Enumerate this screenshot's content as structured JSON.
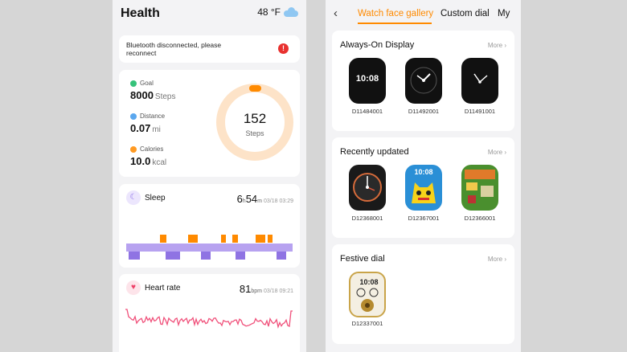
{
  "health": {
    "title": "Health",
    "weather": "48 °F",
    "bluetooth_message": "Bluetooth disconnected, please reconnect",
    "alert_icon": "!",
    "goal": {
      "label": "Goal",
      "value": "8000",
      "unit": "Steps"
    },
    "distance": {
      "label": "Distance",
      "value": "0.07",
      "unit": "mi"
    },
    "calories": {
      "label": "Calories",
      "value": "10.0",
      "unit": "kcal"
    },
    "ring": {
      "value": "152",
      "unit": "Steps",
      "progress": 0.019
    },
    "sleep": {
      "label": "Sleep",
      "hours": "6",
      "h_unit": "h",
      "minutes": "54",
      "m_unit": "m",
      "timestamp": "03/18 03:29"
    },
    "heart": {
      "label": "Heart rate",
      "value": "81",
      "unit": "bpm",
      "timestamp": "03/18 09:21"
    }
  },
  "watch": {
    "tabs": [
      "Watch face gallery",
      "Custom dial",
      "My"
    ],
    "active_tab": 0,
    "more_label": "More",
    "sections": [
      {
        "title": "Always-On Display",
        "faces": [
          "D11484001",
          "D11492001",
          "D11491001"
        ]
      },
      {
        "title": "Recently updated",
        "faces": [
          "D12368001",
          "D12367001",
          "D12366001"
        ]
      },
      {
        "title": "Festive dial",
        "faces": [
          "D12337001"
        ]
      }
    ],
    "face_times": [
      "10:08",
      "10:08",
      "10:08",
      "10:08"
    ]
  },
  "colors": {
    "accent": "#ff8a00",
    "sleep_purple": "#b7a2f0",
    "sleep_orange": "#ff8a00",
    "heart_pink": "#f0507a",
    "alert_red": "#e8312f"
  }
}
